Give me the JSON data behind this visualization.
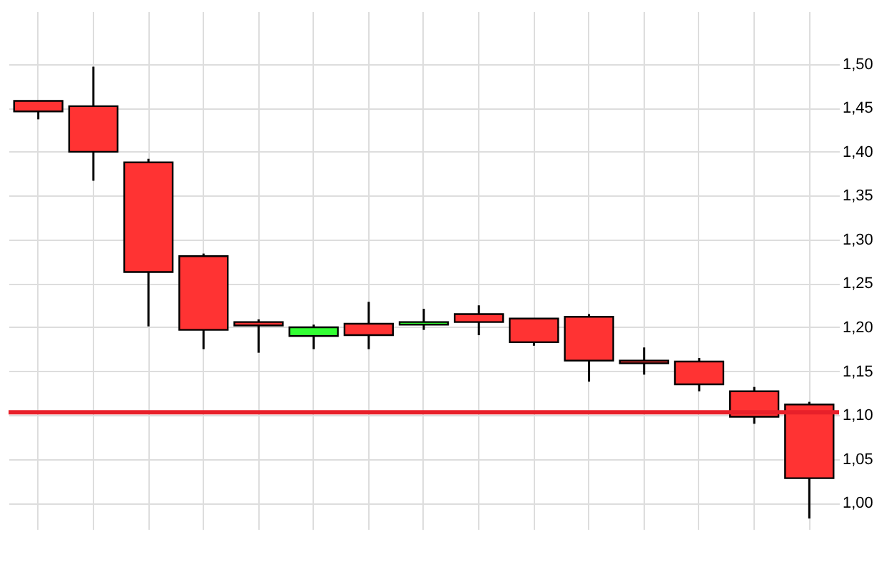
{
  "chart_data": {
    "type": "candlestick",
    "categories": [
      null,
      null,
      null,
      null,
      null,
      null,
      null,
      null,
      null,
      null,
      null,
      null,
      null,
      null,
      null
    ],
    "ohlc": [
      [
        1.458,
        1.458,
        1.437,
        1.446
      ],
      [
        1.452,
        1.497,
        1.367,
        1.4
      ],
      [
        1.388,
        1.392,
        1.201,
        1.263
      ],
      [
        1.281,
        1.284,
        1.175,
        1.197
      ],
      [
        1.206,
        1.209,
        1.171,
        1.202
      ],
      [
        1.19,
        1.203,
        1.175,
        1.2
      ],
      [
        1.204,
        1.229,
        1.175,
        1.191
      ],
      [
        1.203,
        1.221,
        1.197,
        1.206
      ],
      [
        1.215,
        1.225,
        1.191,
        1.206
      ],
      [
        1.21,
        1.21,
        1.179,
        1.183
      ],
      [
        1.212,
        1.215,
        1.138,
        1.162
      ],
      [
        1.162,
        1.177,
        1.146,
        1.159
      ],
      [
        1.161,
        1.165,
        1.127,
        1.135
      ],
      [
        1.127,
        1.132,
        1.09,
        1.098
      ],
      [
        1.112,
        1.115,
        0.982,
        1.028
      ]
    ],
    "colors": [
      "#ff3333",
      "#ff3333",
      "#ff3333",
      "#ff3333",
      "#ff3333",
      "#33ff33",
      "#ff3333",
      "#33ff33",
      "#ff3333",
      "#ff3333",
      "#ff3333",
      "#ff3333",
      "#ff3333",
      "#ff3333",
      "#ff3333"
    ],
    "ylim": [
      0.97,
      1.56
    ],
    "yticks": [
      {
        "value": 1.0,
        "label": "1,00"
      },
      {
        "value": 1.05,
        "label": "1,05"
      },
      {
        "value": 1.1,
        "label": "1,10"
      },
      {
        "value": 1.15,
        "label": "1,15"
      },
      {
        "value": 1.2,
        "label": "1,20"
      },
      {
        "value": 1.25,
        "label": "1,25"
      },
      {
        "value": 1.3,
        "label": "1,30"
      },
      {
        "value": 1.35,
        "label": "1,35"
      },
      {
        "value": 1.4,
        "label": "1,40"
      },
      {
        "value": 1.45,
        "label": "1,45"
      },
      {
        "value": 1.5,
        "label": "1,50"
      }
    ],
    "ref_lines": [
      {
        "axis": "y",
        "value": 1.103,
        "label": null,
        "color": "#e8202a"
      }
    ],
    "grid": true,
    "tick_labels": "y"
  }
}
